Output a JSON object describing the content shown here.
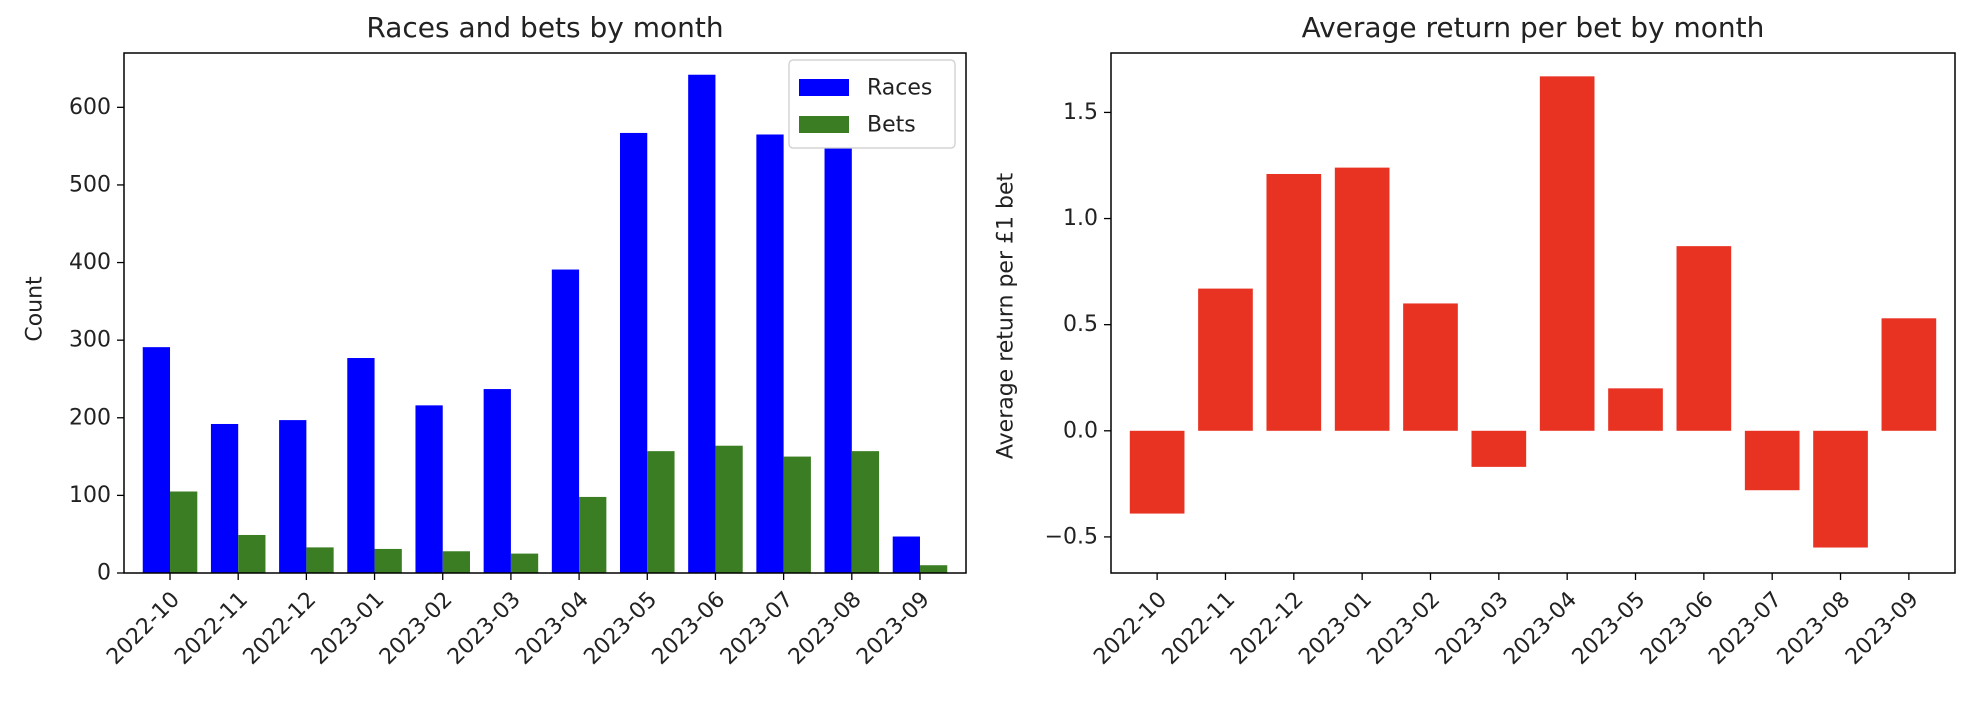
{
  "chart_data": [
    {
      "type": "bar",
      "title": "Races and bets by month",
      "xlabel": "",
      "ylabel": "Count",
      "ylim": [
        0,
        670
      ],
      "yticks": [
        0,
        100,
        200,
        300,
        400,
        500,
        600
      ],
      "grid": false,
      "legend_position": "top-right",
      "categories": [
        "2022-10",
        "2022-11",
        "2022-12",
        "2023-01",
        "2023-02",
        "2023-03",
        "2023-04",
        "2023-05",
        "2023-06",
        "2023-07",
        "2023-08",
        "2023-09"
      ],
      "series": [
        {
          "name": "Races",
          "color": "#0000ff",
          "values": [
            291,
            192,
            197,
            277,
            216,
            237,
            391,
            567,
            642,
            565,
            548,
            47
          ]
        },
        {
          "name": "Bets",
          "color": "#3a7d22",
          "values": [
            105,
            49,
            33,
            31,
            28,
            25,
            98,
            157,
            164,
            150,
            157,
            10
          ]
        }
      ]
    },
    {
      "type": "bar",
      "title": "Average return per bet by month",
      "xlabel": "",
      "ylabel": "Average return per £1 bet",
      "ylim": [
        -0.67,
        1.78
      ],
      "yticks": [
        -0.5,
        0.0,
        0.5,
        1.0,
        1.5
      ],
      "yticklabels": [
        "−0.5",
        "0.0",
        "0.5",
        "1.0",
        "1.5"
      ],
      "grid": false,
      "categories": [
        "2022-10",
        "2022-11",
        "2022-12",
        "2023-01",
        "2023-02",
        "2023-03",
        "2023-04",
        "2023-05",
        "2023-06",
        "2023-07",
        "2023-08",
        "2023-09"
      ],
      "series": [
        {
          "color": "#e83323",
          "values": [
            -0.39,
            0.67,
            1.21,
            1.24,
            0.6,
            -0.17,
            1.67,
            0.2,
            0.87,
            -0.28,
            -0.55,
            0.53
          ]
        }
      ]
    }
  ]
}
